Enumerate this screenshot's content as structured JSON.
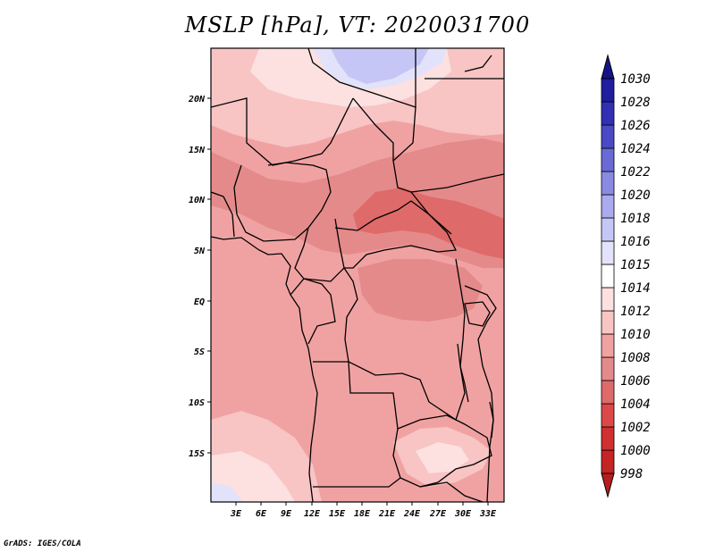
{
  "title": "MSLP [hPa], VT: 2020031700",
  "credit": "GrADS: IGES/COLA",
  "lat_ticks": [
    "20N",
    "15N",
    "10N",
    "5N",
    "EQ",
    "5S",
    "10S",
    "15S"
  ],
  "lon_ticks": [
    "3E",
    "6E",
    "9E",
    "12E",
    "15E",
    "18E",
    "21E",
    "24E",
    "27E",
    "30E",
    "33E"
  ],
  "colorbar": {
    "levels": [
      "998",
      "1000",
      "1002",
      "1004",
      "1006",
      "1008",
      "1010",
      "1012",
      "1014",
      "1015",
      "1016",
      "1018",
      "1020",
      "1022",
      "1024",
      "1026",
      "1028",
      "1030"
    ],
    "colors": [
      "#b81d1d",
      "#c42424",
      "#d03030",
      "#dc4848",
      "#df6a6a",
      "#e48a8a",
      "#f0a2a2",
      "#f8c4c4",
      "#fde0e0",
      "#ffffff",
      "#e2e2fb",
      "#c6c6f6",
      "#aaaaee",
      "#8a8ae4",
      "#6a6ad6",
      "#4a4ac6",
      "#3030b4",
      "#1e1e9e",
      "#141488"
    ]
  },
  "field_colors": {
    "p1014": "#fde0e0",
    "p1012": "#f8c4c4",
    "p1010": "#f0a2a2",
    "p1008": "#e48a8a",
    "p1006": "#df6a6a",
    "p1016": "#e2e2fb",
    "p1018": "#c6c6f6"
  }
}
